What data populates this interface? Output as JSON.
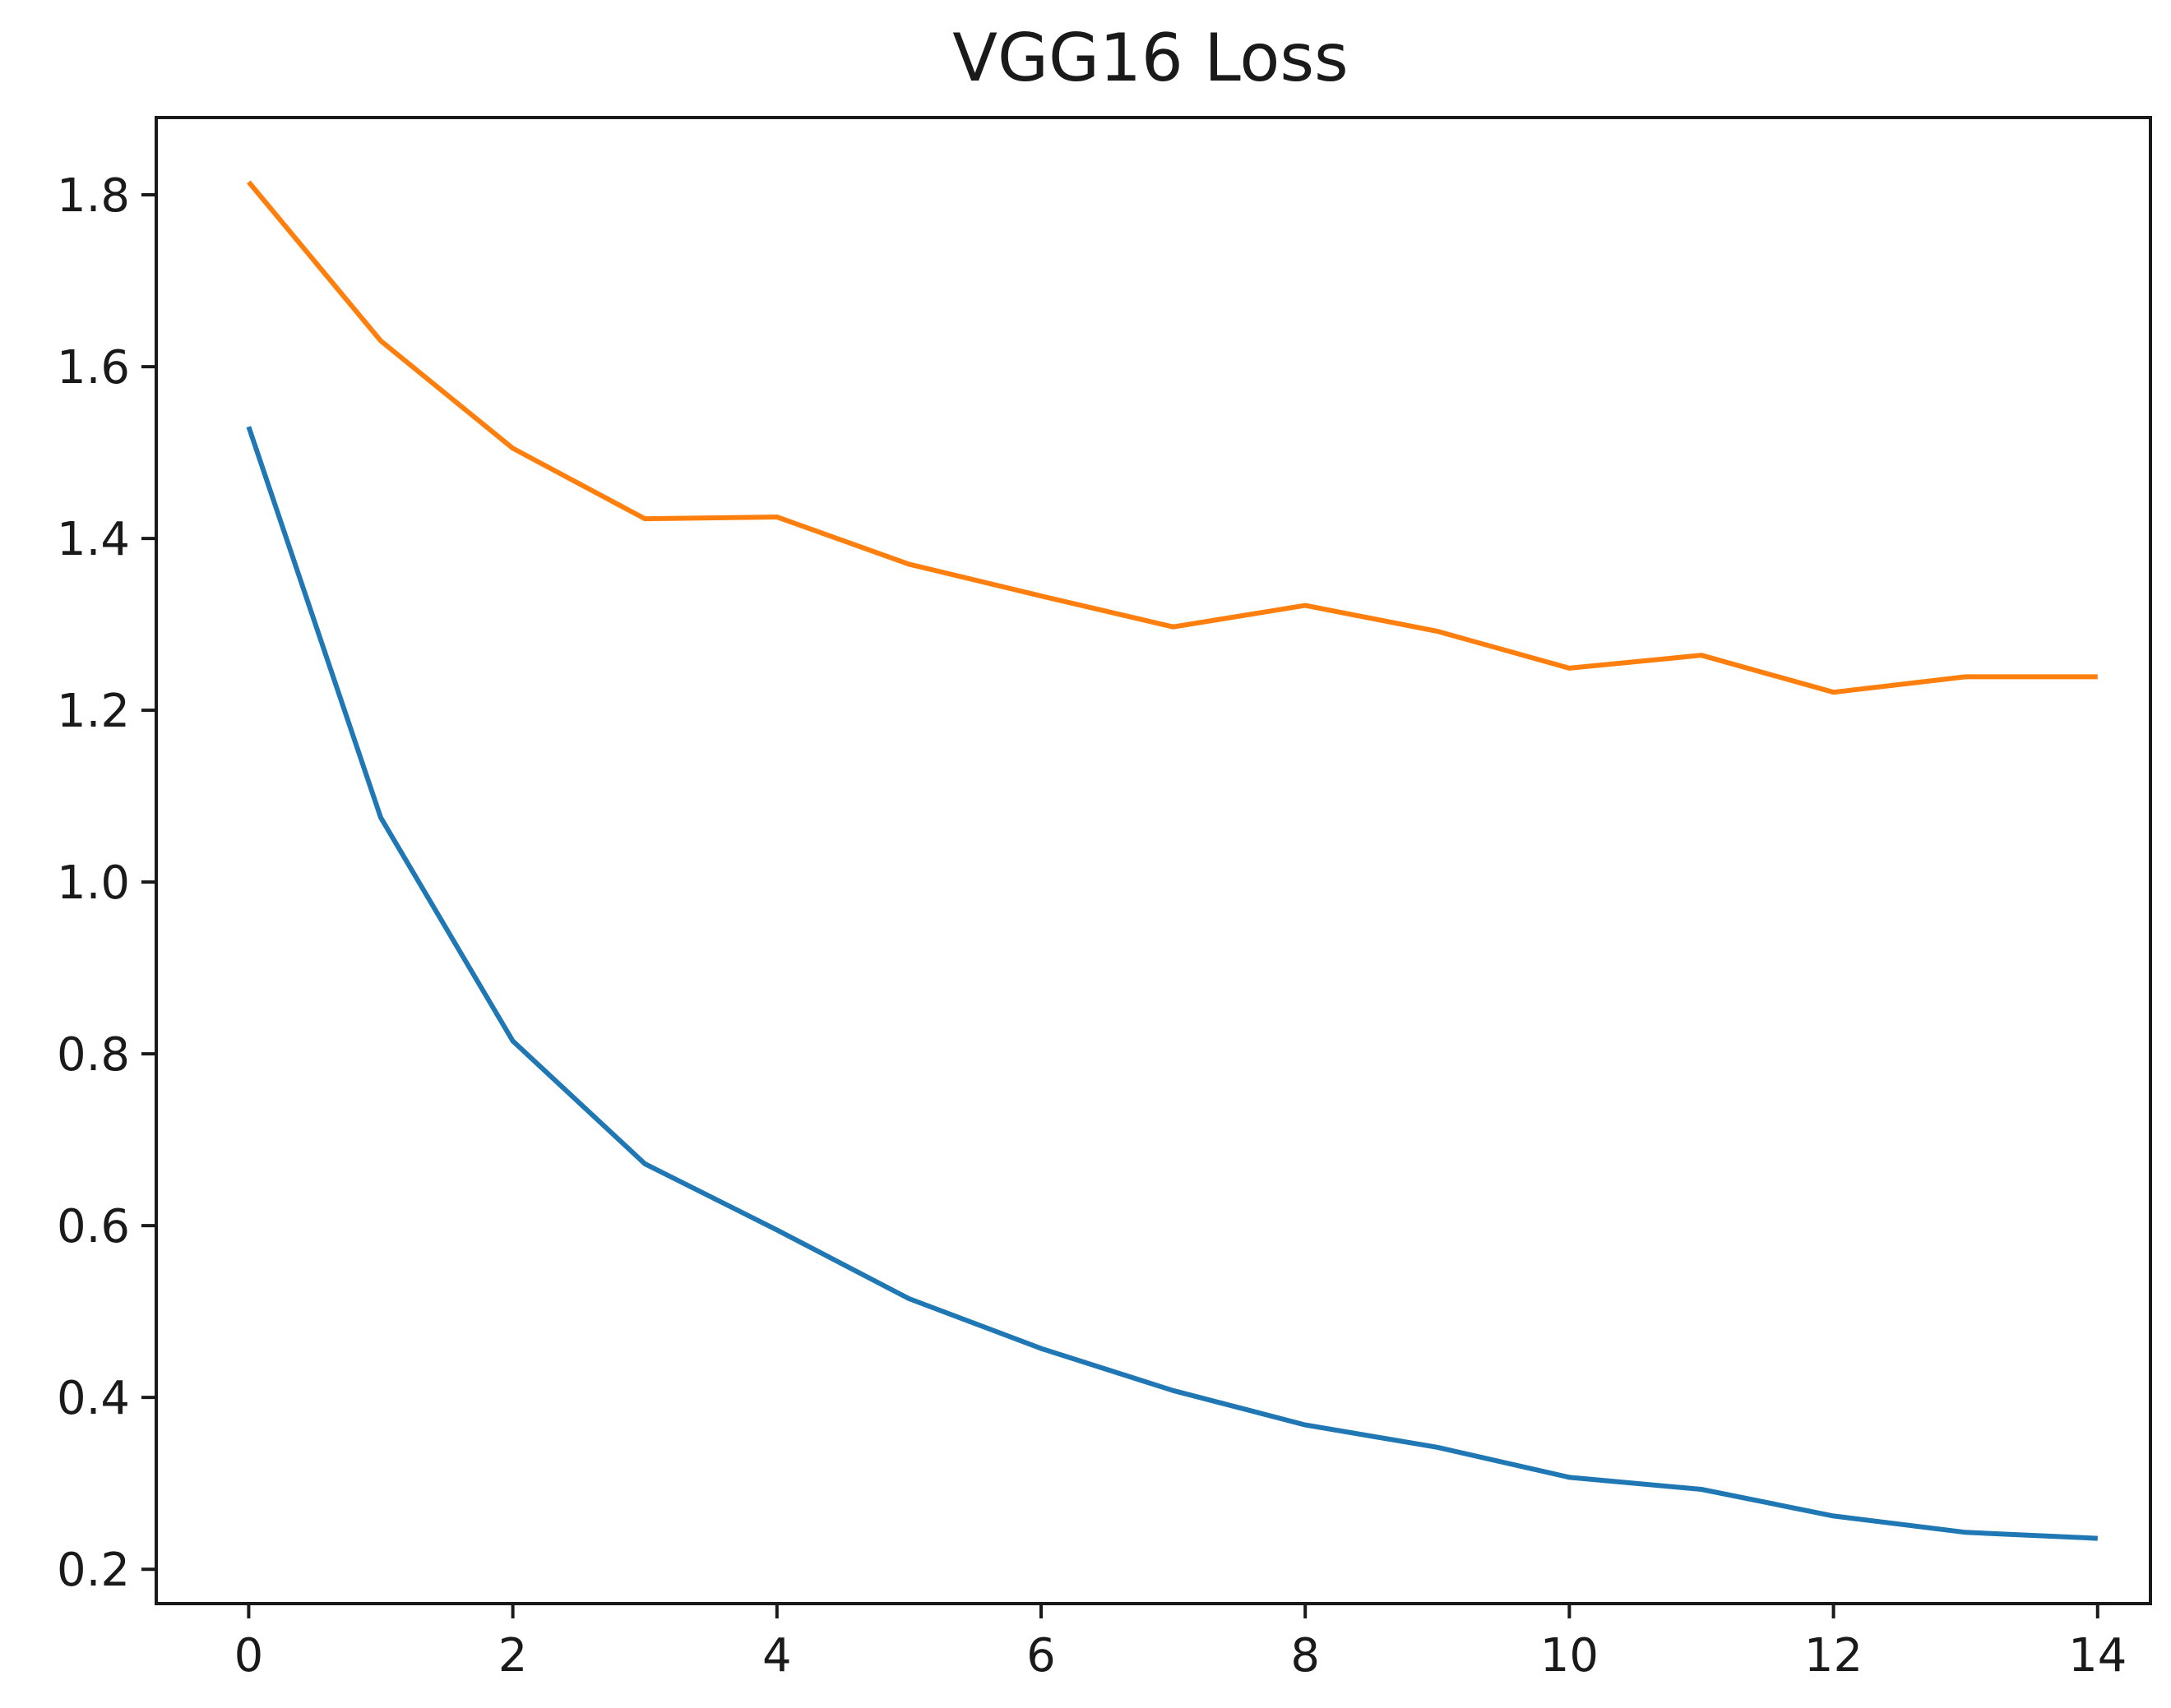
{
  "chart_data": {
    "type": "line",
    "title": "VGG16 Loss",
    "xlabel": "",
    "ylabel": "",
    "x": [
      0,
      1,
      2,
      3,
      4,
      5,
      6,
      7,
      8,
      9,
      10,
      11,
      12,
      13,
      14
    ],
    "xlim": [
      -0.7,
      14.4
    ],
    "ylim": [
      0.16,
      1.89
    ],
    "xticks": [
      0,
      2,
      4,
      6,
      8,
      10,
      12,
      14
    ],
    "xtick_labels": [
      "0",
      "2",
      "4",
      "6",
      "8",
      "10",
      "12",
      "14"
    ],
    "yticks": [
      0.2,
      0.4,
      0.6,
      0.8,
      1.0,
      1.2,
      1.4,
      1.6,
      1.8
    ],
    "ytick_labels": [
      "0.2",
      "0.4",
      "0.6",
      "0.8",
      "1.0",
      "1.2",
      "1.4",
      "1.6",
      "1.8"
    ],
    "grid": false,
    "legend": "none",
    "series": [
      {
        "color": "#1f77b4",
        "values": [
          1.53,
          1.075,
          0.815,
          0.672,
          0.595,
          0.515,
          0.457,
          0.408,
          0.368,
          0.342,
          0.307,
          0.293,
          0.262,
          0.243,
          0.236
        ]
      },
      {
        "color": "#ff7f0e",
        "values": [
          1.815,
          1.63,
          1.505,
          1.423,
          1.425,
          1.37,
          1.333,
          1.297,
          1.322,
          1.292,
          1.249,
          1.264,
          1.221,
          1.239,
          1.239
        ]
      }
    ]
  }
}
